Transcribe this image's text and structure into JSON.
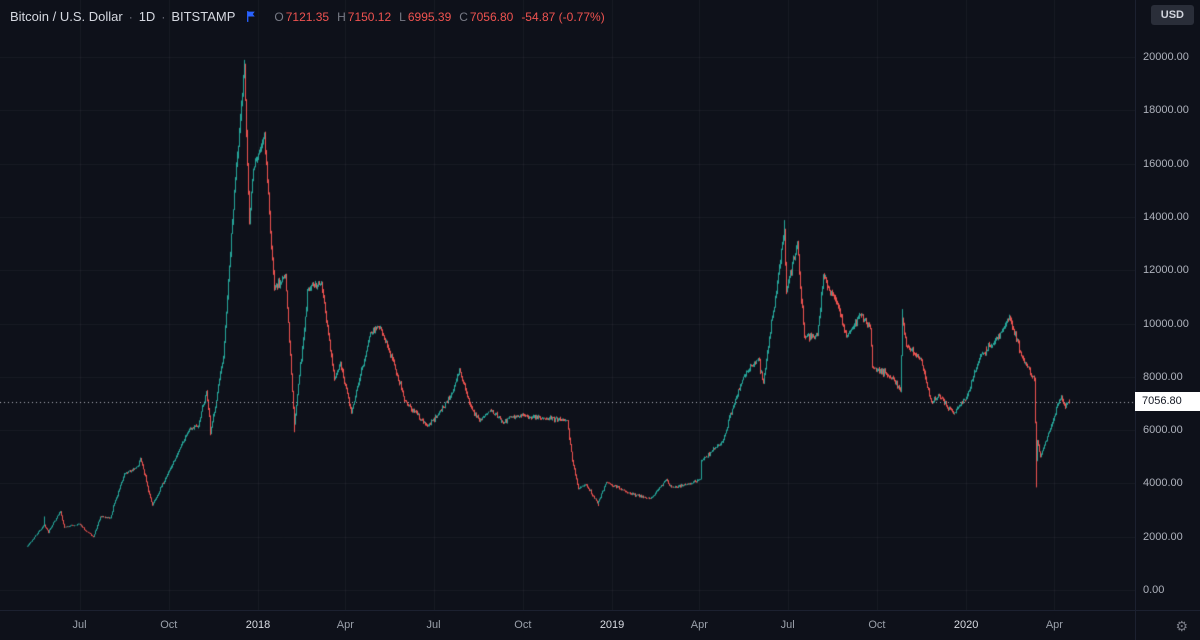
{
  "theme": {
    "background": "#0e111a",
    "grid": "rgba(255,255,255,0.045)",
    "up_color": "#26a69a",
    "down_color": "#ef5350",
    "accent_blue": "#2962ff",
    "axis_text": "#aeb2bc",
    "price_line": "#b2b5be",
    "price_label_bg": "#ffffff",
    "price_label_text": "#131722"
  },
  "legend": {
    "symbol_title": "Bitcoin / U.S. Dollar",
    "separator": "·",
    "interval": "1D",
    "exchange": "BITSTAMP",
    "flag_icon": "flag-icon",
    "ohlc": {
      "open_label": "O",
      "open": "7121.35",
      "high_label": "H",
      "high": "7150.12",
      "low_label": "L",
      "low": "6995.39",
      "close_label": "C",
      "close": "7056.80",
      "change": "-54.87 (-0.77%)"
    }
  },
  "toolbar": {
    "currency_button": "USD"
  },
  "price_axis": {
    "current_price": "7056.80",
    "ticks": [
      {
        "label": "20000.00",
        "value": 20000
      },
      {
        "label": "18000.00",
        "value": 18000
      },
      {
        "label": "16000.00",
        "value": 16000
      },
      {
        "label": "14000.00",
        "value": 14000
      },
      {
        "label": "12000.00",
        "value": 12000
      },
      {
        "label": "10000.00",
        "value": 10000
      },
      {
        "label": "8000.00",
        "value": 8000
      },
      {
        "label": "6000.00",
        "value": 6000
      },
      {
        "label": "4000.00",
        "value": 4000
      },
      {
        "label": "2000.00",
        "value": 2000
      },
      {
        "label": "0.00",
        "value": 0
      }
    ]
  },
  "time_axis": {
    "ticks": [
      {
        "label": "Jul",
        "day": 82,
        "is_year": false
      },
      {
        "label": "Oct",
        "day": 174,
        "is_year": false
      },
      {
        "label": "2018",
        "day": 266,
        "is_year": true
      },
      {
        "label": "Apr",
        "day": 356,
        "is_year": false
      },
      {
        "label": "Jul",
        "day": 447,
        "is_year": false
      },
      {
        "label": "Oct",
        "day": 539,
        "is_year": false
      },
      {
        "label": "2019",
        "day": 631,
        "is_year": true
      },
      {
        "label": "Apr",
        "day": 721,
        "is_year": false
      },
      {
        "label": "Jul",
        "day": 812,
        "is_year": false
      },
      {
        "label": "Oct",
        "day": 904,
        "is_year": false
      },
      {
        "label": "2020",
        "day": 996,
        "is_year": true
      },
      {
        "label": "Apr",
        "day": 1087,
        "is_year": false
      }
    ]
  },
  "chart_data": {
    "type": "candlestick",
    "title": "Bitcoin / U.S. Dollar, 1D, BITSTAMP",
    "unit": "USD",
    "x_axis": {
      "epoch": "2017-04-10",
      "start_day_index": 28,
      "end_day_index": 1102,
      "tick_labels": [
        "Jul",
        "Oct",
        "2018",
        "Apr",
        "Jul",
        "Oct",
        "2019",
        "Apr",
        "Jul",
        "Oct",
        "2020",
        "Apr"
      ]
    },
    "y_axis": {
      "min": 0,
      "max": 20500,
      "tick_interval": 2000
    },
    "grid": true,
    "legend_position": "top-left",
    "up_color": "#26a69a",
    "down_color": "#ef5350",
    "last_bar": {
      "open": 7121.35,
      "high": 7150.12,
      "low": 6995.39,
      "close": 7056.8,
      "change": -54.87,
      "change_pct": -0.77
    },
    "price_path": [
      [
        28,
        1650
      ],
      [
        45,
        2450
      ],
      [
        49,
        2150
      ],
      [
        62,
        2950
      ],
      [
        66,
        2350
      ],
      [
        81,
        2480
      ],
      [
        96,
        1990
      ],
      [
        103,
        2750
      ],
      [
        113,
        2700
      ],
      [
        128,
        4350
      ],
      [
        142,
        4650
      ],
      [
        144,
        4950
      ],
      [
        157,
        3180
      ],
      [
        172,
        4340
      ],
      [
        195,
        6050
      ],
      [
        204,
        6130
      ],
      [
        212,
        7450
      ],
      [
        217,
        5850
      ],
      [
        230,
        8750
      ],
      [
        243,
        16000
      ],
      [
        252,
        19650
      ],
      [
        257,
        13800
      ],
      [
        261,
        15800
      ],
      [
        272,
        17100
      ],
      [
        282,
        11300
      ],
      [
        294,
        11800
      ],
      [
        303,
        6250
      ],
      [
        317,
        11250
      ],
      [
        331,
        11500
      ],
      [
        344,
        7900
      ],
      [
        351,
        8500
      ],
      [
        362,
        6650
      ],
      [
        381,
        9650
      ],
      [
        392,
        9850
      ],
      [
        406,
        8450
      ],
      [
        416,
        7150
      ],
      [
        440,
        6150
      ],
      [
        452,
        6600
      ],
      [
        466,
        7400
      ],
      [
        473,
        8250
      ],
      [
        483,
        7050
      ],
      [
        494,
        6350
      ],
      [
        505,
        6750
      ],
      [
        519,
        6280
      ],
      [
        527,
        6500
      ],
      [
        545,
        6480
      ],
      [
        560,
        6450
      ],
      [
        585,
        6350
      ],
      [
        590,
        4850
      ],
      [
        596,
        3800
      ],
      [
        604,
        3950
      ],
      [
        616,
        3230
      ],
      [
        625,
        4050
      ],
      [
        646,
        3650
      ],
      [
        670,
        3420
      ],
      [
        687,
        4150
      ],
      [
        692,
        3850
      ],
      [
        712,
        4000
      ],
      [
        722,
        4150
      ],
      [
        723,
        4850
      ],
      [
        744,
        5550
      ],
      [
        766,
        8000
      ],
      [
        781,
        8700
      ],
      [
        787,
        7800
      ],
      [
        808,
        13500
      ],
      [
        810,
        11200
      ],
      [
        822,
        13000
      ],
      [
        829,
        9500
      ],
      [
        842,
        9550
      ],
      [
        848,
        11800
      ],
      [
        863,
        10750
      ],
      [
        872,
        9500
      ],
      [
        887,
        10350
      ],
      [
        897,
        9800
      ],
      [
        899,
        8350
      ],
      [
        921,
        7950
      ],
      [
        928,
        7470
      ],
      [
        930,
        10200
      ],
      [
        934,
        9150
      ],
      [
        949,
        8650
      ],
      [
        960,
        7050
      ],
      [
        967,
        7300
      ],
      [
        983,
        6600
      ],
      [
        996,
        7200
      ],
      [
        1010,
        8800
      ],
      [
        1025,
        9300
      ],
      [
        1034,
        9800
      ],
      [
        1040,
        10250
      ],
      [
        1053,
        8800
      ],
      [
        1064,
        8000
      ],
      [
        1066,
        7900
      ],
      [
        1068,
        4850
      ],
      [
        1069,
        5600
      ],
      [
        1072,
        5000
      ],
      [
        1086,
        6400
      ],
      [
        1094,
        7300
      ],
      [
        1098,
        6850
      ],
      [
        1102,
        7056.8
      ]
    ],
    "wick_overrides": [
      {
        "day": 45,
        "high": 2760
      },
      {
        "day": 252,
        "high": 19891
      },
      {
        "day": 303,
        "low": 5920
      },
      {
        "day": 616,
        "low": 3150
      },
      {
        "day": 808,
        "high": 13880
      },
      {
        "day": 930,
        "high": 10540
      },
      {
        "day": 1068,
        "low": 3850
      }
    ]
  }
}
